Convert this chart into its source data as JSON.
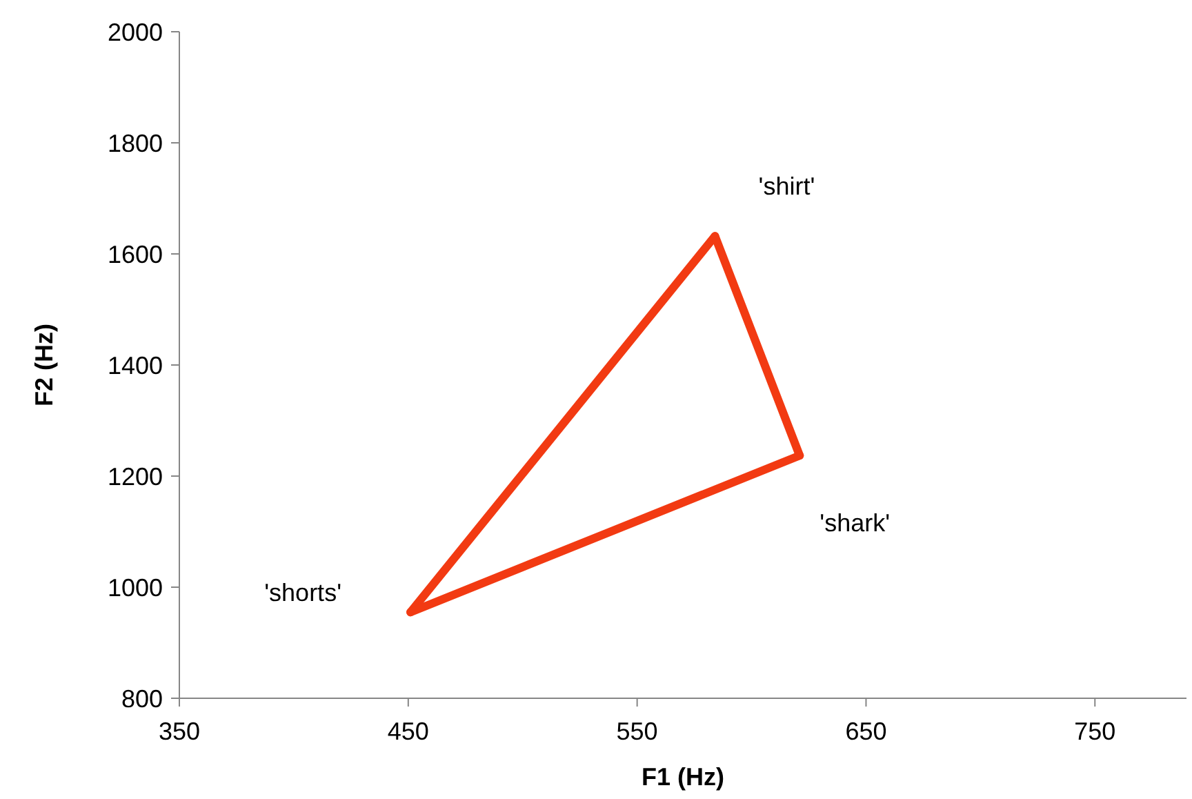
{
  "chart_data": {
    "type": "line",
    "xlabel": "F1 (Hz)",
    "ylabel": "F2 (Hz)",
    "xlim": [
      350,
      790
    ],
    "xticks": [
      350,
      450,
      550,
      650,
      750
    ],
    "ylim": [
      800,
      2000
    ],
    "yticks": [
      800,
      1000,
      1200,
      1400,
      1600,
      1800,
      2000
    ],
    "grid": false,
    "marker": "none",
    "line_style": "solid",
    "series": [
      {
        "color": "#f23a12",
        "x": [
          451,
          584
        ],
        "values": [
          955,
          1632
        ]
      },
      {
        "color": "#f23a12",
        "x": [
          584,
          621
        ],
        "values": [
          1632,
          1237
        ]
      },
      {
        "color": "#f23a12",
        "x": [
          451,
          621
        ],
        "values": [
          955,
          1237
        ]
      }
    ],
    "annotations": [
      {
        "text": "'shorts'",
        "x": 451,
        "y": 955
      },
      {
        "text": "'shirt'",
        "x": 584,
        "y": 1632
      },
      {
        "text": "'shark'",
        "x": 621,
        "y": 1237
      }
    ]
  }
}
